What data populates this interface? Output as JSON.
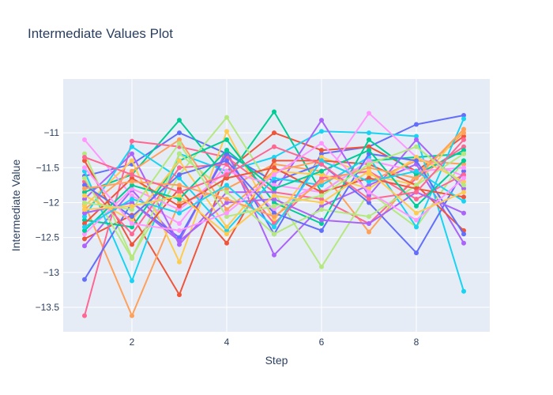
{
  "chart_data": {
    "type": "line",
    "title": "Intermediate Values Plot",
    "xlabel": "Step",
    "ylabel": "Intermediate Value",
    "xlim": [
      0.55,
      9.55
    ],
    "ylim": [
      -13.85,
      -10.23
    ],
    "x_ticks": [
      2,
      4,
      6,
      8
    ],
    "y_ticks": [
      -11,
      -11.5,
      -12,
      -12.5,
      -13,
      -13.5
    ],
    "x_tick_labels": [
      "2",
      "4",
      "6",
      "8"
    ],
    "y_tick_labels": [
      "−11",
      "−11.5",
      "−12",
      "−12.5",
      "−13",
      "−13.5"
    ],
    "grid": true,
    "legend": "none",
    "x": [
      1,
      2,
      3,
      4,
      5,
      6,
      7,
      8,
      9
    ],
    "series": [
      {
        "color": "#636efa",
        "values": [
          -11.62,
          -11.45,
          -11.0,
          -11.3,
          -12.45,
          -11.3,
          -11.2,
          -10.88,
          -10.75
        ]
      },
      {
        "color": "#ef553b",
        "values": [
          -12.52,
          -12.18,
          -13.32,
          -11.55,
          -11.0,
          -11.25,
          -11.2,
          -11.55,
          -11.05
        ]
      },
      {
        "color": "#00cc96",
        "values": [
          -11.85,
          -11.6,
          -10.82,
          -11.65,
          -10.7,
          -11.85,
          -11.4,
          -11.35,
          -11.3
        ]
      },
      {
        "color": "#ab63fa",
        "values": [
          -12.62,
          -11.82,
          -12.55,
          -11.25,
          -12.75,
          -12.05,
          -11.75,
          -11.45,
          -12.58
        ]
      },
      {
        "color": "#ffa15a",
        "values": [
          -12.02,
          -13.62,
          -12.0,
          -11.8,
          -11.45,
          -11.55,
          -12.42,
          -11.6,
          -11.0
        ]
      },
      {
        "color": "#19d3f3",
        "values": [
          -11.55,
          -13.12,
          -11.3,
          -11.55,
          -11.35,
          -10.98,
          -11.0,
          -11.05,
          -13.27
        ]
      },
      {
        "color": "#ff6692",
        "values": [
          -13.62,
          -11.12,
          -11.2,
          -11.35,
          -11.85,
          -11.95,
          -12.3,
          -11.65,
          -11.2
        ]
      },
      {
        "color": "#b6e880",
        "values": [
          -11.3,
          -12.78,
          -11.6,
          -10.78,
          -11.85,
          -12.92,
          -11.85,
          -12.35,
          -11.4
        ]
      },
      {
        "color": "#ff97ff",
        "values": [
          -11.1,
          -11.9,
          -12.3,
          -11.45,
          -12.1,
          -11.7,
          -10.72,
          -11.35,
          -11.62
        ]
      },
      {
        "color": "#fecb52",
        "values": [
          -12.05,
          -11.4,
          -12.85,
          -10.98,
          -12.25,
          -11.35,
          -11.6,
          -11.75,
          -10.95
        ]
      },
      {
        "color": "#636efa",
        "values": [
          -13.1,
          -12.0,
          -12.5,
          -11.3,
          -11.7,
          -11.45,
          -12.0,
          -12.72,
          -11.55
        ]
      },
      {
        "color": "#ef553b",
        "values": [
          -11.4,
          -12.6,
          -11.8,
          -12.58,
          -11.4,
          -11.4,
          -11.45,
          -11.75,
          -12.4
        ]
      },
      {
        "color": "#00cc96",
        "values": [
          -12.25,
          -12.35,
          -11.4,
          -11.1,
          -12.0,
          -12.3,
          -11.1,
          -11.6,
          -11.25
        ]
      },
      {
        "color": "#ab63fa",
        "values": [
          -11.95,
          -11.3,
          -12.6,
          -11.85,
          -11.85,
          -10.82,
          -11.9,
          -11.1,
          -11.8
        ]
      },
      {
        "color": "#ffa15a",
        "values": [
          -12.1,
          -11.55,
          -11.1,
          -12.1,
          -11.55,
          -11.4,
          -11.7,
          -11.4,
          -11.45
        ]
      },
      {
        "color": "#19d3f3",
        "values": [
          -12.2,
          -11.2,
          -11.65,
          -12.4,
          -11.65,
          -11.75,
          -11.35,
          -12.35,
          -10.8
        ]
      },
      {
        "color": "#ff6692",
        "values": [
          -11.7,
          -12.45,
          -11.5,
          -11.45,
          -12.3,
          -11.65,
          -11.55,
          -11.95,
          -11.6
        ]
      },
      {
        "color": "#b6e880",
        "values": [
          -11.65,
          -12.8,
          -11.3,
          -11.85,
          -12.45,
          -12.1,
          -12.2,
          -11.75,
          -11.3
        ]
      },
      {
        "color": "#ff97ff",
        "values": [
          -12.45,
          -11.8,
          -12.1,
          -11.55,
          -11.75,
          -11.85,
          -11.4,
          -11.55,
          -11.5
        ]
      },
      {
        "color": "#fecb52",
        "values": [
          -11.9,
          -12.25,
          -11.4,
          -12.35,
          -11.55,
          -11.6,
          -11.8,
          -11.35,
          -11.7
        ]
      },
      {
        "color": "#636efa",
        "values": [
          -11.75,
          -12.2,
          -11.6,
          -11.4,
          -12.15,
          -12.4,
          -11.3,
          -11.4,
          -12.45
        ]
      },
      {
        "color": "#ef553b",
        "values": [
          -12.3,
          -11.65,
          -12.05,
          -11.65,
          -11.5,
          -11.85,
          -11.65,
          -11.8,
          -11.92
        ]
      },
      {
        "color": "#00cc96",
        "values": [
          -12.4,
          -11.75,
          -11.95,
          -11.25,
          -11.8,
          -11.55,
          -11.25,
          -12.05,
          -11.4
        ]
      },
      {
        "color": "#ab63fa",
        "values": [
          -12.15,
          -12.0,
          -12.55,
          -12.0,
          -11.95,
          -12.25,
          -12.3,
          -11.85,
          -12.15
        ]
      },
      {
        "color": "#ffa15a",
        "values": [
          -11.8,
          -11.7,
          -11.75,
          -11.95,
          -12.2,
          -11.7,
          -11.5,
          -11.65,
          -10.95
        ]
      },
      {
        "color": "#19d3f3",
        "values": [
          -12.35,
          -11.95,
          -12.15,
          -11.75,
          -12.35,
          -11.4,
          -11.7,
          -11.55,
          -11.98
        ]
      },
      {
        "color": "#ff6692",
        "values": [
          -11.35,
          -11.6,
          -11.85,
          -11.6,
          -11.2,
          -11.45,
          -11.95,
          -11.85,
          -11.1
        ]
      },
      {
        "color": "#b6e880",
        "values": [
          -12.0,
          -12.1,
          -11.15,
          -12.2,
          -12.05,
          -11.9,
          -11.45,
          -11.2,
          -11.75
        ]
      },
      {
        "color": "#ff97ff",
        "values": [
          -11.5,
          -12.3,
          -12.4,
          -12.15,
          -11.6,
          -11.15,
          -11.85,
          -12.25,
          -11.65
        ]
      },
      {
        "color": "#fecb52",
        "values": [
          -12.1,
          -12.05,
          -11.9,
          -12.45,
          -11.9,
          -12.0,
          -11.55,
          -12.15,
          -11.85
        ]
      }
    ]
  }
}
